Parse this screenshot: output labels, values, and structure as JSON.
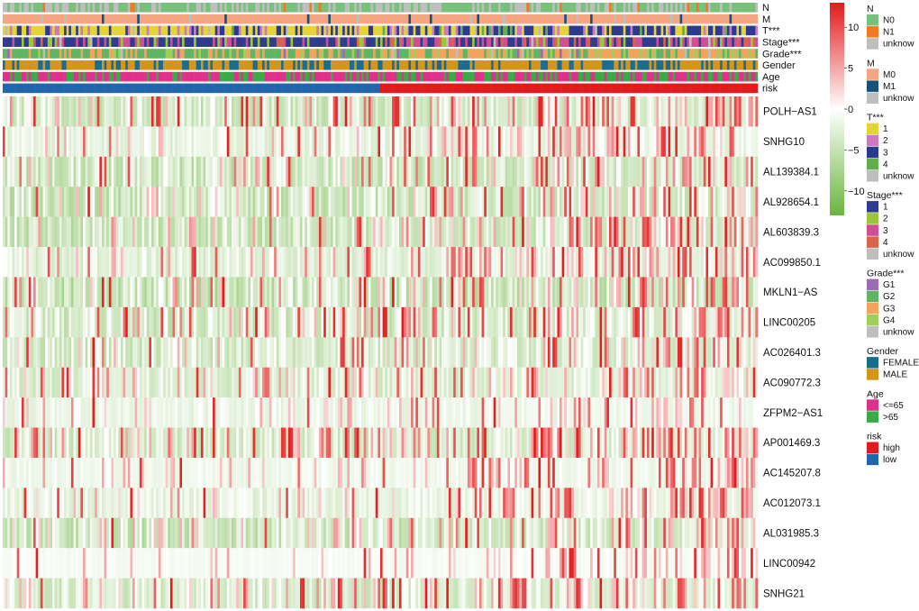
{
  "chart_data": {
    "type": "heatmap",
    "n_samples": 320,
    "rows": [
      "POLH−AS1",
      "SNHG10",
      "AL139384.1",
      "AL928654.1",
      "AL603839.3",
      "AC099850.1",
      "MKLN1−AS",
      "LINC00205",
      "AC026401.3",
      "AC090772.3",
      "ZFPM2−AS1",
      "AP001469.3",
      "AC145207.8",
      "AC012073.1",
      "AL031985.3",
      "LINC00942",
      "SNHG21"
    ],
    "row_traits": [
      {
        "bg": 0.55,
        "low_spread": 1.0,
        "spike": 0.1,
        "trend": 1.0
      },
      {
        "bg": 0.35,
        "low_spread": 0.6,
        "spike": 0.08,
        "trend": 1.0
      },
      {
        "bg": 0.65,
        "low_spread": 1.0,
        "spike": 0.06,
        "trend": 1.0
      },
      {
        "bg": 0.7,
        "low_spread": 1.0,
        "spike": 0.05,
        "trend": 0.8
      },
      {
        "bg": 0.65,
        "low_spread": 1.0,
        "spike": 0.05,
        "trend": 1.0
      },
      {
        "bg": 0.4,
        "low_spread": 0.7,
        "spike": 0.1,
        "trend": 1.0
      },
      {
        "bg": 0.8,
        "low_spread": 1.0,
        "spike": 0.07,
        "trend": 0.6
      },
      {
        "bg": 0.55,
        "low_spread": 1.0,
        "spike": 0.1,
        "trend": 1.1
      },
      {
        "bg": 0.55,
        "low_spread": 0.9,
        "spike": 0.05,
        "trend": 1.0
      },
      {
        "bg": 0.45,
        "low_spread": 0.8,
        "spike": 0.06,
        "trend": 1.1
      },
      {
        "bg": 0.2,
        "low_spread": 0.5,
        "spike": 0.04,
        "trend": 0.9
      },
      {
        "bg": 0.5,
        "low_spread": 0.9,
        "spike": 0.13,
        "trend": 1.0
      },
      {
        "bg": 0.15,
        "low_spread": 0.4,
        "spike": 0.06,
        "trend": 1.0
      },
      {
        "bg": 0.3,
        "low_spread": 0.6,
        "spike": 0.08,
        "trend": 1.0
      },
      {
        "bg": 0.7,
        "low_spread": 1.0,
        "spike": 0.05,
        "trend": 1.2
      },
      {
        "bg": 0.05,
        "low_spread": 0.2,
        "spike": 0.03,
        "trend": 0.9
      },
      {
        "bg": 0.45,
        "low_spread": 0.9,
        "spike": 0.1,
        "trend": 0.9
      }
    ],
    "annotations": [
      {
        "name": "N",
        "label": "N",
        "levels": [
          "N0",
          "N1",
          "unknow"
        ],
        "weights_low": [
          0.55,
          0.04,
          0.41
        ],
        "weights_high": [
          0.55,
          0.05,
          0.4
        ]
      },
      {
        "name": "M",
        "label": "M",
        "levels": [
          "M0",
          "M1",
          "unknow"
        ],
        "weights_low": [
          0.92,
          0.04,
          0.04
        ],
        "weights_high": [
          0.88,
          0.07,
          0.05
        ]
      },
      {
        "name": "T",
        "label": "T***",
        "levels": [
          "1",
          "2",
          "3",
          "4",
          "unknow"
        ],
        "weights_low": [
          0.62,
          0.13,
          0.2,
          0.02,
          0.03
        ],
        "weights_high": [
          0.32,
          0.14,
          0.45,
          0.06,
          0.03
        ]
      },
      {
        "name": "Stage",
        "label": "Stage***",
        "levels": [
          "1",
          "2",
          "3",
          "4",
          "unknow"
        ],
        "weights_low": [
          0.6,
          0.14,
          0.2,
          0.04,
          0.02
        ],
        "weights_high": [
          0.3,
          0.12,
          0.38,
          0.17,
          0.03
        ]
      },
      {
        "name": "Grade",
        "label": "Grade***",
        "levels": [
          "G1",
          "G2",
          "G3",
          "G4",
          "unknow"
        ],
        "weights_low": [
          0.04,
          0.55,
          0.33,
          0.06,
          0.02
        ],
        "weights_high": [
          0.02,
          0.3,
          0.5,
          0.16,
          0.02
        ]
      },
      {
        "name": "Gender",
        "label": "Gender",
        "levels": [
          "FEMALE",
          "MALE"
        ],
        "weights_low": [
          0.35,
          0.65
        ],
        "weights_high": [
          0.35,
          0.65
        ]
      },
      {
        "name": "Age",
        "label": "Age",
        "levels": [
          "<=65",
          ">65"
        ],
        "weights_low": [
          0.6,
          0.4
        ],
        "weights_high": [
          0.52,
          0.48
        ]
      },
      {
        "name": "risk",
        "label": "risk",
        "levels": [
          "high",
          "low"
        ],
        "split": 0.5
      }
    ],
    "colorbar": {
      "min": -13,
      "max": 13,
      "ticks": [
        10,
        5,
        0,
        -5,
        -10
      ],
      "colors": [
        "#6ab43e",
        "#ffffff",
        "#e31a1c"
      ]
    },
    "legend_position": "right"
  },
  "legend": {
    "groups": [
      {
        "title": "N",
        "items": [
          {
            "label": "N0",
            "color": "#77c17a"
          },
          {
            "label": "N1",
            "color": "#f07a22"
          },
          {
            "label": "unknow",
            "color": "#bebebe"
          }
        ]
      },
      {
        "title": "M",
        "items": [
          {
            "label": "M0",
            "color": "#f4a582"
          },
          {
            "label": "M1",
            "color": "#17507a"
          },
          {
            "label": "unknow",
            "color": "#bebebe"
          }
        ]
      },
      {
        "title": "T***",
        "items": [
          {
            "label": "1",
            "color": "#e3d43a"
          },
          {
            "label": "2",
            "color": "#cc79bf"
          },
          {
            "label": "3",
            "color": "#2b3a8f"
          },
          {
            "label": "4",
            "color": "#5fb04a"
          },
          {
            "label": "unknow",
            "color": "#bebebe"
          }
        ]
      },
      {
        "title": "Stage***",
        "items": [
          {
            "label": "1",
            "color": "#2e3b8e"
          },
          {
            "label": "2",
            "color": "#9bc63a"
          },
          {
            "label": "3",
            "color": "#cf4f94"
          },
          {
            "label": "4",
            "color": "#d9644a"
          },
          {
            "label": "unknow",
            "color": "#bebebe"
          }
        ]
      },
      {
        "title": "Grade***",
        "items": [
          {
            "label": "G1",
            "color": "#9b6bb5"
          },
          {
            "label": "G2",
            "color": "#5fb564"
          },
          {
            "label": "G3",
            "color": "#f2a35c"
          },
          {
            "label": "G4",
            "color": "#9fcf5a"
          },
          {
            "label": "unknow",
            "color": "#bebebe"
          }
        ]
      },
      {
        "title": "Gender",
        "items": [
          {
            "label": "FEMALE",
            "color": "#1b6d8f"
          },
          {
            "label": "MALE",
            "color": "#d4951a"
          }
        ]
      },
      {
        "title": "Age",
        "items": [
          {
            "label": "<=65",
            "color": "#e0318a"
          },
          {
            "label": ">65",
            "color": "#3aaa48"
          }
        ]
      },
      {
        "title": "risk",
        "items": [
          {
            "label": "high",
            "color": "#e31a1c"
          },
          {
            "label": "low",
            "color": "#2166ac"
          }
        ]
      }
    ]
  }
}
